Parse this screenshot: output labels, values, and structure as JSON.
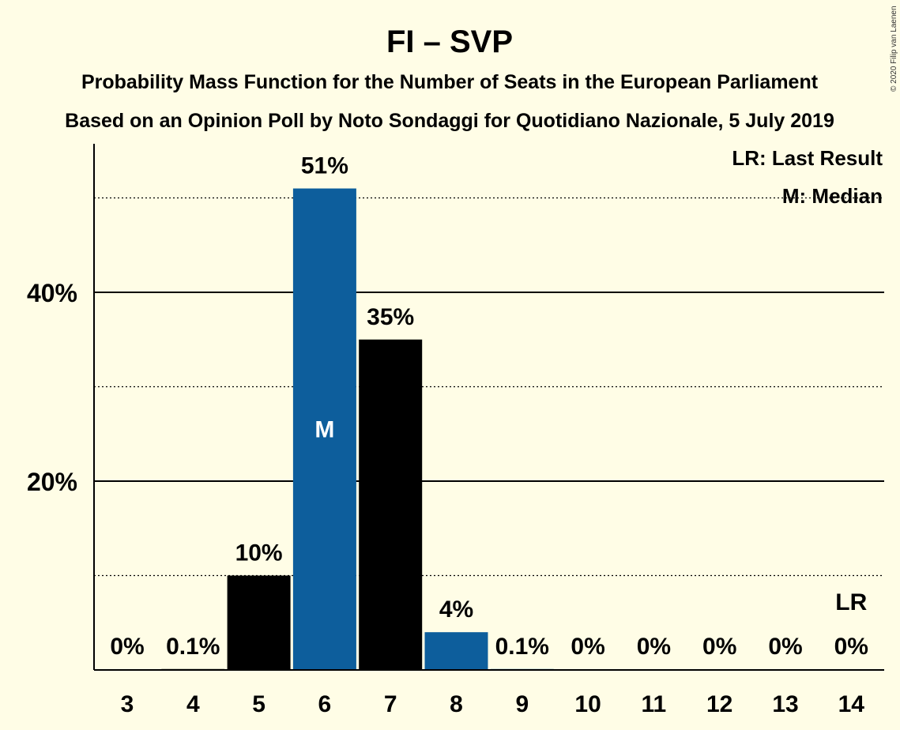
{
  "chart_data": {
    "type": "bar",
    "title": "FI – SVP",
    "subtitle_1": "Probability Mass Function for the Number of Seats in the European Parliament",
    "subtitle_2": "Based on an Opinion Poll by Noto Sondaggi for Quotidiano Nazionale, 5 July 2019",
    "legend": {
      "last_result": "LR: Last Result",
      "median": "M: Median"
    },
    "copyright": "© 2020 Filip van Laenen",
    "categories": [
      "3",
      "4",
      "5",
      "6",
      "7",
      "8",
      "9",
      "10",
      "11",
      "12",
      "13",
      "14"
    ],
    "values": [
      0,
      0.1,
      10,
      51,
      35,
      4,
      0.1,
      0,
      0,
      0,
      0,
      0
    ],
    "value_labels": [
      "0%",
      "0.1%",
      "10%",
      "51%",
      "35%",
      "4%",
      "0.1%",
      "0%",
      "0%",
      "0%",
      "0%",
      "0%"
    ],
    "ylim": [
      0,
      56
    ],
    "yticks_major": [
      20,
      40
    ],
    "ytick_labels": [
      "20%",
      "40%"
    ],
    "yticks_minor": [
      10,
      30,
      50
    ],
    "grid": true,
    "legend_position": "top-right",
    "median_category": "6",
    "median_label": "M",
    "last_result_category": "14",
    "last_result_label": "LR",
    "colors": {
      "background": "#fffde6",
      "bar_primary": "#0d5e9c",
      "bar_secondary": "#000000",
      "text": "#111111",
      "median_text": "#ffffff"
    },
    "bar_color_pattern": [
      "primary",
      "secondary",
      "secondary",
      "primary",
      "secondary",
      "primary",
      "primary",
      "primary",
      "primary",
      "primary",
      "primary",
      "primary"
    ]
  }
}
